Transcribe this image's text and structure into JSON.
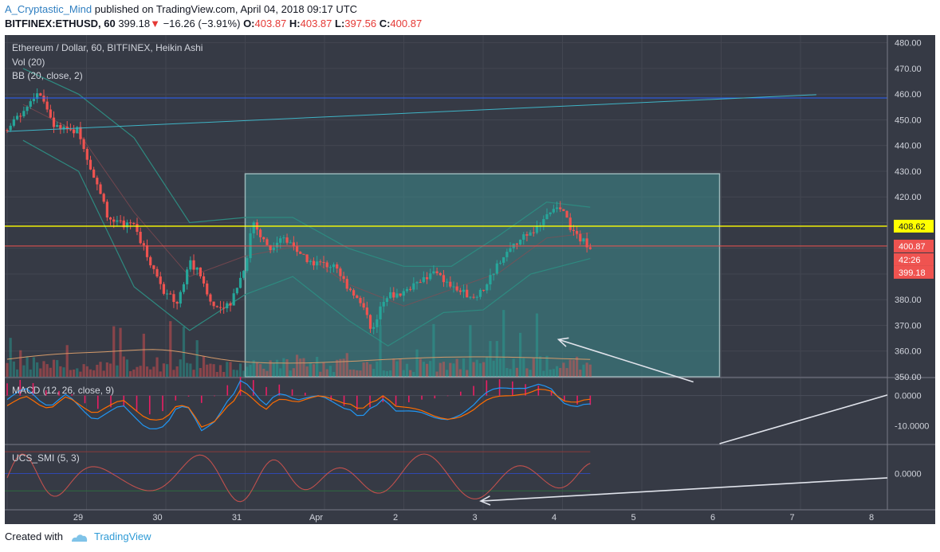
{
  "header": {
    "author": "A_Cryptastic_Mind",
    "published_text": "published on TradingView.com, April 04, 2018 09:17 UTC",
    "symbol": "BITFINEX:ETHUSD, 60",
    "last": "399.18",
    "change_arrow": "▼",
    "change": "−16.26 (−3.91%)",
    "o_label": "O:",
    "o_value": "403.87",
    "h_label": "H:",
    "h_value": "403.87",
    "l_label": "L:",
    "l_value": "397.56",
    "c_label": "C:",
    "c_value": "400.87"
  },
  "footer": {
    "created_with": "Created with",
    "brand": "TradingView"
  },
  "colors": {
    "background": "#363a45",
    "up": "#26a69a",
    "down": "#ef5350",
    "bb": "#2e8a80",
    "zone": "#3d8a8c",
    "yellow_line": "#ffff00",
    "blue_line": "#2962ff",
    "trend_line": "#3fb4c6",
    "arrow": "#e0e3eb"
  },
  "chart_data": [
    {
      "type": "candlestick",
      "title": "Ethereum / Dollar, 60, BITFINEX, Heikin Ashi",
      "indicators": [
        "Vol (20)",
        "BB (20, close, 2)"
      ],
      "x_ticks": [
        "29",
        "30",
        "31",
        "Apr",
        "2",
        "3",
        "4",
        "5",
        "6",
        "7",
        "8"
      ],
      "y_ticks": [
        "350.00",
        "360.00",
        "370.00",
        "380.00",
        "390.00",
        "400.00",
        "410.00",
        "420.00",
        "430.00",
        "440.00",
        "450.00",
        "460.00",
        "470.00",
        "480.00"
      ],
      "ylim": [
        350,
        483
      ],
      "price_labels": {
        "level": "408.62",
        "close": "400.87",
        "countdown": "42:26",
        "last": "399.18"
      },
      "close_path": [
        {
          "x": 0.0,
          "y": 446
        },
        {
          "x": 0.3,
          "y": 458
        },
        {
          "x": 0.4,
          "y": 462
        },
        {
          "x": 0.6,
          "y": 447
        },
        {
          "x": 0.9,
          "y": 446
        },
        {
          "x": 1.1,
          "y": 427
        },
        {
          "x": 1.3,
          "y": 410
        },
        {
          "x": 1.6,
          "y": 409
        },
        {
          "x": 1.8,
          "y": 395
        },
        {
          "x": 2.0,
          "y": 382
        },
        {
          "x": 2.15,
          "y": 379
        },
        {
          "x": 2.3,
          "y": 395
        },
        {
          "x": 2.45,
          "y": 389
        },
        {
          "x": 2.6,
          "y": 377
        },
        {
          "x": 2.8,
          "y": 378
        },
        {
          "x": 3.0,
          "y": 393
        },
        {
          "x": 3.1,
          "y": 411
        },
        {
          "x": 3.3,
          "y": 399
        },
        {
          "x": 3.5,
          "y": 404
        },
        {
          "x": 3.8,
          "y": 395
        },
        {
          "x": 4.1,
          "y": 393
        },
        {
          "x": 4.3,
          "y": 385
        },
        {
          "x": 4.5,
          "y": 378
        },
        {
          "x": 4.6,
          "y": 367
        },
        {
          "x": 4.75,
          "y": 381
        },
        {
          "x": 5.0,
          "y": 383
        },
        {
          "x": 5.2,
          "y": 388
        },
        {
          "x": 5.4,
          "y": 390
        },
        {
          "x": 5.6,
          "y": 385
        },
        {
          "x": 5.85,
          "y": 381
        },
        {
          "x": 6.0,
          "y": 384
        },
        {
          "x": 6.2,
          "y": 395
        },
        {
          "x": 6.4,
          "y": 402
        },
        {
          "x": 6.7,
          "y": 408
        },
        {
          "x": 6.85,
          "y": 415
        },
        {
          "x": 7.0,
          "y": 414
        },
        {
          "x": 7.15,
          "y": 405
        },
        {
          "x": 7.35,
          "y": 401
        }
      ],
      "bb_upper": [
        {
          "x": 0.2,
          "y": 470
        },
        {
          "x": 0.9,
          "y": 460
        },
        {
          "x": 1.6,
          "y": 443
        },
        {
          "x": 2.3,
          "y": 410
        },
        {
          "x": 3.0,
          "y": 412
        },
        {
          "x": 3.6,
          "y": 412
        },
        {
          "x": 4.3,
          "y": 400
        },
        {
          "x": 5.0,
          "y": 393
        },
        {
          "x": 5.6,
          "y": 393
        },
        {
          "x": 6.2,
          "y": 405
        },
        {
          "x": 6.8,
          "y": 418
        },
        {
          "x": 7.35,
          "y": 416
        }
      ],
      "bb_lower": [
        {
          "x": 0.2,
          "y": 442
        },
        {
          "x": 0.9,
          "y": 430
        },
        {
          "x": 1.6,
          "y": 385
        },
        {
          "x": 2.3,
          "y": 368
        },
        {
          "x": 3.0,
          "y": 382
        },
        {
          "x": 3.6,
          "y": 389
        },
        {
          "x": 4.3,
          "y": 372
        },
        {
          "x": 4.8,
          "y": 362
        },
        {
          "x": 5.5,
          "y": 375
        },
        {
          "x": 6.0,
          "y": 376
        },
        {
          "x": 6.6,
          "y": 390
        },
        {
          "x": 7.35,
          "y": 396
        }
      ],
      "horizontal_levels": [
        {
          "y": 458.5,
          "color": "#2962ff"
        },
        {
          "y": 408.62,
          "color": "#ffff00"
        },
        {
          "y": 400.87,
          "color": "#ef5350"
        }
      ],
      "trend_line": {
        "x1": 0.0,
        "y1": 445.5,
        "x2": 10.2,
        "y2": 459.8
      },
      "zone": {
        "x1": 3.0,
        "x2": 8.98,
        "y1": 350,
        "y2": 429
      },
      "arrows": [
        {
          "x1": 8.65,
          "y1": 348,
          "x2": 6.95,
          "y2": 364.5
        }
      ]
    },
    {
      "type": "line",
      "title": "MACD (12, 26, close, 9)",
      "y_ticks": [
        "0.0000",
        "-10.0000"
      ],
      "ylim": [
        -16,
        6
      ]
    },
    {
      "type": "line",
      "title": "UCS_SMI (5, 3)",
      "y_ticks": [
        "0.0000"
      ],
      "ylim": [
        -25,
        20
      ]
    }
  ]
}
